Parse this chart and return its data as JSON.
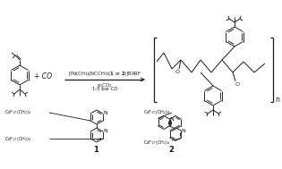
{
  "background_color": "#ffffff",
  "figure_width": 3.15,
  "figure_height": 1.89,
  "dpi": 100,
  "line_color": "#1a1a1a",
  "text_color": "#1a1a1a",
  "above_arrow_text": "[Pd(CH$_3$)(NCCH$_3$)(\\textbf{1} or \\textbf{2})]BARF",
  "below_arrow_line1": "scCO$_2$",
  "below_arrow_line2": "1-5 bar CO",
  "label_1": "1",
  "label_2": "2",
  "co_text": "+ CO",
  "n_text": "n",
  "lig1_top": "C$_8$F$_{17}$(CH$_2$)$_4$",
  "lig1_bot": "C$_8$F$_{17}$(CH$_2$)$_4$",
  "lig2_top": "C$_8$F$_{17}$(CH$_2$)$_4$",
  "lig2_bot": "C$_8$F$_{17}$(CH$_2$)$_4$"
}
